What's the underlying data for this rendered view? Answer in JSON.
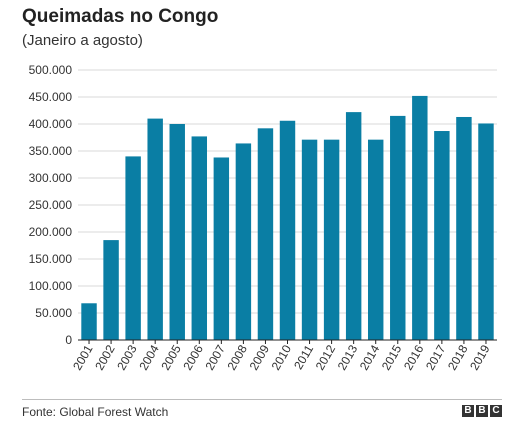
{
  "header": {
    "title": "Queimadas no Congo",
    "subtitle": "(Janeiro a agosto)"
  },
  "footer": {
    "source": "Fonte: Global Forest Watch",
    "logo_letters": [
      "B",
      "B",
      "C"
    ]
  },
  "colors": {
    "bar": "#0a7ea4",
    "grid": "#d9d9d9",
    "axis": "#222222"
  },
  "chart_data": {
    "type": "bar",
    "categories": [
      "2001",
      "2002",
      "2003",
      "2004",
      "2005",
      "2006",
      "2007",
      "2008",
      "2009",
      "2010",
      "2011",
      "2012",
      "2013",
      "2014",
      "2015",
      "2016",
      "2017",
      "2018",
      "2019"
    ],
    "values": [
      68000,
      185000,
      340000,
      410000,
      400000,
      377000,
      338000,
      364000,
      392000,
      406000,
      371000,
      371000,
      422000,
      371000,
      415000,
      452000,
      387000,
      413000,
      401000
    ],
    "ylim": [
      0,
      500000
    ],
    "yticks": [
      0,
      50000,
      100000,
      150000,
      200000,
      250000,
      300000,
      350000,
      400000,
      450000,
      500000
    ],
    "ytick_labels": [
      "0",
      "50.000",
      "100.000",
      "150.000",
      "200.000",
      "250.000",
      "300.000",
      "350.000",
      "400.000",
      "450.000",
      "500.000"
    ],
    "title": "Queimadas no Congo",
    "subtitle": "(Janeiro a agosto)",
    "xlabel": "",
    "ylabel": "",
    "grid": true,
    "legend": "none"
  }
}
